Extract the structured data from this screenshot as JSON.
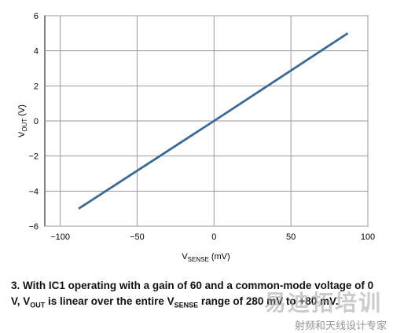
{
  "chart_data": {
    "type": "line",
    "xlim": [
      -110,
      100
    ],
    "ylim": [
      -6,
      6
    ],
    "xticks": [
      -100,
      -50,
      0,
      50,
      100
    ],
    "yticks": [
      -6,
      -4,
      -2,
      0,
      2,
      4,
      6
    ],
    "xtick_labels": [
      "−100",
      "−50",
      "0",
      "50",
      "100"
    ],
    "ytick_labels": [
      "−6",
      "−4",
      "−2",
      "0",
      "2",
      "4",
      "6"
    ],
    "xlabel": {
      "main": "V",
      "sub": "SENSE",
      "unit": " (mV)"
    },
    "ylabel": {
      "main": "V",
      "sub": "OUT",
      "unit": " (V)"
    },
    "grid": true,
    "series": [
      {
        "x": [
          -88,
          0,
          87
        ],
        "y": [
          -5.0,
          0.0,
          5.0
        ],
        "color": "#3d6a95"
      }
    ]
  },
  "caption": {
    "part1": "3. With IC1 operating with a gain of 60 and a common-mode voltage of 0 V, V",
    "sub1": "OUT",
    "part2": " is linear over the entire V",
    "sub2": "SENSE",
    "part3": " range of 280 mV to +80 mV."
  },
  "watermark": {
    "main": "易迪拓培训",
    "sub": "射频和天线设计专家"
  }
}
